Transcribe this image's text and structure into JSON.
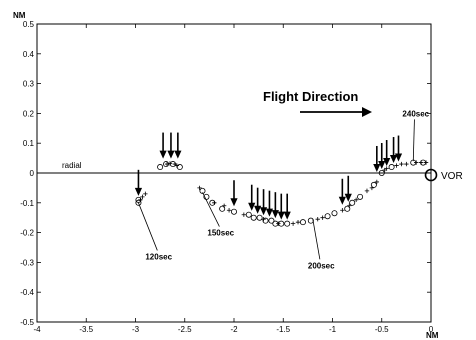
{
  "chart_data": {
    "type": "scatter",
    "title": "",
    "ylabel": "NM",
    "xlabel": "NM",
    "xlim": [
      -4,
      0
    ],
    "ylim": [
      -0.5,
      0.5
    ],
    "x_ticks": [
      "-4",
      "-3.5",
      "-3",
      "-2.5",
      "-2",
      "-1.5",
      "-1",
      "-0.5",
      "0"
    ],
    "y_ticks": [
      "0.5",
      "0.4",
      "0.3",
      "0.2",
      "0.1",
      "0",
      "-0.1",
      "-0.2",
      "-0.3",
      "-0.4",
      "-0.5"
    ],
    "grid": false,
    "reference_line": {
      "y": 0,
      "label": "radial"
    },
    "marker_label": "VOR",
    "flight_direction_label": "Flight Direction",
    "series": [
      {
        "marker": "circle",
        "points": [
          [
            -2.97,
            -0.1
          ],
          [
            -2.97,
            -0.09
          ],
          [
            -2.75,
            0.02
          ],
          [
            -2.69,
            0.03
          ],
          [
            -2.62,
            0.03
          ],
          [
            -2.55,
            0.02
          ],
          [
            -2.32,
            -0.06
          ],
          [
            -2.28,
            -0.08
          ],
          [
            -2.22,
            -0.1
          ],
          [
            -2.12,
            -0.12
          ],
          [
            -2.0,
            -0.13
          ],
          [
            -1.85,
            -0.14
          ],
          [
            -1.8,
            -0.15
          ],
          [
            -1.74,
            -0.15
          ],
          [
            -1.68,
            -0.16
          ],
          [
            -1.62,
            -0.16
          ],
          [
            -1.58,
            -0.17
          ],
          [
            -1.52,
            -0.17
          ],
          [
            -1.46,
            -0.17
          ],
          [
            -1.3,
            -0.165
          ],
          [
            -1.22,
            -0.16
          ],
          [
            -1.05,
            -0.145
          ],
          [
            -0.98,
            -0.135
          ],
          [
            -0.85,
            -0.12
          ],
          [
            -0.8,
            -0.1
          ],
          [
            -0.72,
            -0.08
          ],
          [
            -0.58,
            -0.04
          ],
          [
            -0.5,
            0.0
          ],
          [
            -0.4,
            0.02
          ],
          [
            -0.18,
            0.035
          ],
          [
            -0.08,
            0.035
          ]
        ]
      },
      {
        "marker": "plus",
        "points": [
          [
            -2.95,
            -0.09
          ],
          [
            -2.93,
            -0.08
          ],
          [
            -2.9,
            -0.07
          ],
          [
            -2.68,
            0.03
          ],
          [
            -2.65,
            0.032
          ],
          [
            -2.6,
            0.03
          ],
          [
            -2.58,
            0.025
          ],
          [
            -2.35,
            -0.05
          ],
          [
            -2.2,
            -0.1
          ],
          [
            -2.1,
            -0.11
          ],
          [
            -2.05,
            -0.125
          ],
          [
            -1.9,
            -0.14
          ],
          [
            -1.7,
            -0.155
          ],
          [
            -1.55,
            -0.17
          ],
          [
            -1.4,
            -0.17
          ],
          [
            -1.35,
            -0.165
          ],
          [
            -1.15,
            -0.155
          ],
          [
            -1.1,
            -0.15
          ],
          [
            -0.9,
            -0.125
          ],
          [
            -0.83,
            -0.11
          ],
          [
            -0.76,
            -0.09
          ],
          [
            -0.65,
            -0.06
          ],
          [
            -0.6,
            -0.05
          ],
          [
            -0.55,
            -0.03
          ],
          [
            -0.47,
            0.01
          ],
          [
            -0.45,
            0.015
          ],
          [
            -0.35,
            0.025
          ],
          [
            -0.3,
            0.03
          ],
          [
            -0.25,
            0.03
          ],
          [
            -0.15,
            0.035
          ],
          [
            -0.1,
            0.035
          ],
          [
            -0.05,
            0.035
          ]
        ]
      }
    ],
    "arrows": [
      {
        "x": -2.97,
        "tip_y": -0.09
      },
      {
        "x": -2.72,
        "tip_y": 0.035
      },
      {
        "x": -2.64,
        "tip_y": 0.035
      },
      {
        "x": -2.57,
        "tip_y": 0.035
      },
      {
        "x": -2.0,
        "tip_y": -0.125
      },
      {
        "x": -1.82,
        "tip_y": -0.14
      },
      {
        "x": -1.76,
        "tip_y": -0.15
      },
      {
        "x": -1.7,
        "tip_y": -0.155
      },
      {
        "x": -1.64,
        "tip_y": -0.16
      },
      {
        "x": -1.58,
        "tip_y": -0.165
      },
      {
        "x": -1.52,
        "tip_y": -0.17
      },
      {
        "x": -1.46,
        "tip_y": -0.17
      },
      {
        "x": -0.9,
        "tip_y": -0.12
      },
      {
        "x": -0.84,
        "tip_y": -0.11
      },
      {
        "x": -0.55,
        "tip_y": -0.01
      },
      {
        "x": -0.5,
        "tip_y": 0.0
      },
      {
        "x": -0.45,
        "tip_y": 0.01
      },
      {
        "x": -0.38,
        "tip_y": 0.02
      },
      {
        "x": -0.33,
        "tip_y": 0.025
      }
    ],
    "annotations": [
      {
        "text": "120sec",
        "x": -2.97,
        "y": -0.1,
        "label_x": -2.9,
        "label_y": -0.29
      },
      {
        "text": "150sec",
        "x": -2.32,
        "y": -0.065,
        "label_x": -2.27,
        "label_y": -0.21
      },
      {
        "text": "200sec",
        "x": -1.2,
        "y": -0.155,
        "label_x": -1.25,
        "label_y": -0.32
      },
      {
        "text": "240sec",
        "x": -0.18,
        "y": 0.04,
        "label_x": -0.29,
        "label_y": 0.19
      }
    ]
  }
}
